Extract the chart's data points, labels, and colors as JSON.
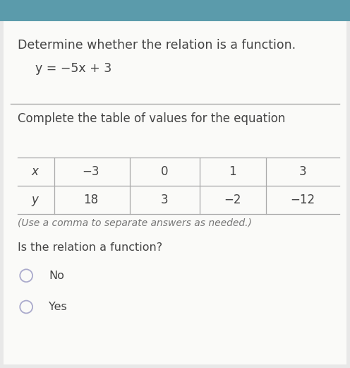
{
  "bg_color": "#e8e8e8",
  "card_color": "#fafaf8",
  "teal_color": "#5b9bab",
  "title_text": "Determine whether the relation is a function.",
  "equation_text": "y = −5x + 3",
  "section2_text": "Complete the table of values for the equation",
  "table_x_label": "x",
  "table_y_label": "y",
  "x_values": [
    "−3",
    "0",
    "1",
    "3"
  ],
  "y_values": [
    "18",
    "3",
    "−2",
    "−12"
  ],
  "note_text": "(Use a comma to separate answers as needed.)",
  "question_text": "Is the relation a function?",
  "option1": "No",
  "option2": "Yes",
  "title_fontsize": 12.5,
  "equation_fontsize": 12.5,
  "body_fontsize": 12,
  "table_fontsize": 12,
  "note_fontsize": 10,
  "question_fontsize": 11.5,
  "text_color": "#444444",
  "line_color": "#aaaaaa",
  "circle_color": "#aaaacc",
  "note_color": "#777777"
}
